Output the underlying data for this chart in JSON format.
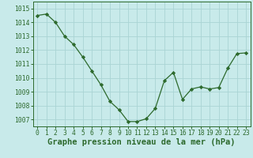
{
  "x": [
    0,
    1,
    2,
    3,
    4,
    5,
    6,
    7,
    8,
    9,
    10,
    11,
    12,
    13,
    14,
    15,
    16,
    17,
    18,
    19,
    20,
    21,
    22,
    23
  ],
  "y": [
    1014.5,
    1014.6,
    1014.0,
    1013.0,
    1012.4,
    1011.5,
    1010.5,
    1009.5,
    1008.3,
    1007.7,
    1006.85,
    1006.85,
    1007.05,
    1007.8,
    1009.8,
    1010.4,
    1008.45,
    1009.2,
    1009.35,
    1009.2,
    1009.3,
    1010.7,
    1011.75,
    1011.8
  ],
  "ylim_min": 1006.5,
  "ylim_max": 1015.5,
  "yticks": [
    1007,
    1008,
    1009,
    1010,
    1011,
    1012,
    1013,
    1014,
    1015
  ],
  "xticks": [
    0,
    1,
    2,
    3,
    4,
    5,
    6,
    7,
    8,
    9,
    10,
    11,
    12,
    13,
    14,
    15,
    16,
    17,
    18,
    19,
    20,
    21,
    22,
    23
  ],
  "line_color": "#2d6a2d",
  "marker": "D",
  "marker_size": 2.2,
  "bg_color": "#c8eaea",
  "grid_color": "#aad4d4",
  "xlabel": "Graphe pression niveau de la mer (hPa)",
  "xlabel_color": "#2d6a2d",
  "xlabel_fontsize": 7.5,
  "tick_fontsize": 5.8,
  "tick_color": "#2d6a2d",
  "spine_color": "#2d6a2d",
  "linewidth": 0.9
}
